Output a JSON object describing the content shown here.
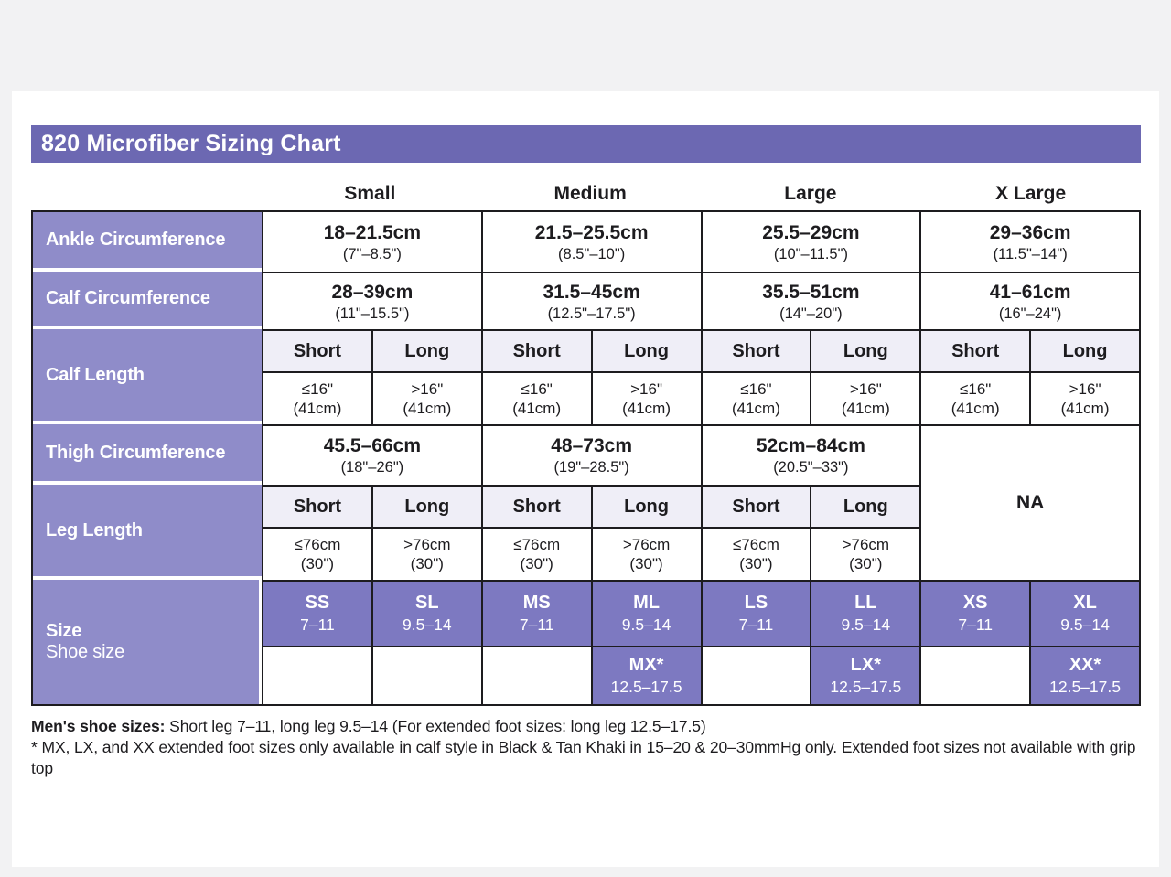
{
  "title": "820 Microfiber Sizing Chart",
  "columns": [
    "Small",
    "Medium",
    "Large",
    "X Large"
  ],
  "colors": {
    "title_bar_purple": "#6c68b2",
    "row_label_purple": "#8f8cc9",
    "size_cell_purple": "#7d79c1",
    "subheader_lavender": "#efeef7",
    "border_black": "#1d1c1f",
    "page_background": "#f2f2f3"
  },
  "table": {
    "ankle": {
      "label": "Ankle Circumference",
      "cells": [
        {
          "primary": "18–21.5cm",
          "secondary": "(7\"–8.5\")"
        },
        {
          "primary": "21.5–25.5cm",
          "secondary": "(8.5\"–10\")"
        },
        {
          "primary": "25.5–29cm",
          "secondary": "(10\"–11.5\")"
        },
        {
          "primary": "29–36cm",
          "secondary": "(11.5\"–14\")"
        }
      ]
    },
    "calf_circumference": {
      "label": "Calf Circumference",
      "cells": [
        {
          "primary": "28–39cm",
          "secondary": "(11\"–15.5\")"
        },
        {
          "primary": "31.5–45cm",
          "secondary": "(12.5\"–17.5\")"
        },
        {
          "primary": "35.5–51cm",
          "secondary": "(14\"–20\")"
        },
        {
          "primary": "41–61cm",
          "secondary": "(16\"–24\")"
        }
      ]
    },
    "calf_length": {
      "label": "Calf Length",
      "subheaders": [
        "Short",
        "Long",
        "Short",
        "Long",
        "Short",
        "Long",
        "Short",
        "Long"
      ],
      "values": [
        {
          "limit": "≤16\"",
          "note": "(41cm)"
        },
        {
          "limit": ">16\"",
          "note": "(41cm)"
        },
        {
          "limit": "≤16\"",
          "note": "(41cm)"
        },
        {
          "limit": ">16\"",
          "note": "(41cm)"
        },
        {
          "limit": "≤16\"",
          "note": "(41cm)"
        },
        {
          "limit": ">16\"",
          "note": "(41cm)"
        },
        {
          "limit": "≤16\"",
          "note": "(41cm)"
        },
        {
          "limit": ">16\"",
          "note": "(41cm)"
        }
      ]
    },
    "thigh_circumference": {
      "label": "Thigh Circumference",
      "cells": [
        {
          "primary": "45.5–66cm",
          "secondary": "(18\"–26\")"
        },
        {
          "primary": "48–73cm",
          "secondary": "(19\"–28.5\")"
        },
        {
          "primary": "52cm–84cm",
          "secondary": "(20.5\"–33\")"
        }
      ],
      "na": "NA"
    },
    "leg_length": {
      "label": "Leg Length",
      "subheaders": [
        "Short",
        "Long",
        "Short",
        "Long",
        "Short",
        "Long"
      ],
      "values": [
        {
          "limit": "≤76cm",
          "note": "(30\")"
        },
        {
          "limit": ">76cm",
          "note": "(30\")"
        },
        {
          "limit": "≤76cm",
          "note": "(30\")"
        },
        {
          "limit": ">76cm",
          "note": "(30\")"
        },
        {
          "limit": "≤76cm",
          "note": "(30\")"
        },
        {
          "limit": ">76cm",
          "note": "(30\")"
        }
      ]
    },
    "size": {
      "label_primary": "Size",
      "label_secondary": "Shoe size",
      "row1": [
        {
          "code": "SS",
          "range": "7–11"
        },
        {
          "code": "SL",
          "range": "9.5–14"
        },
        {
          "code": "MS",
          "range": "7–11"
        },
        {
          "code": "ML",
          "range": "9.5–14"
        },
        {
          "code": "LS",
          "range": "7–11"
        },
        {
          "code": "LL",
          "range": "9.5–14"
        },
        {
          "code": "XS",
          "range": "7–11"
        },
        {
          "code": "XL",
          "range": "9.5–14"
        }
      ],
      "row2": {
        "mx": {
          "code": "MX*",
          "range": "12.5–17.5"
        },
        "lx": {
          "code": "LX*",
          "range": "12.5–17.5"
        },
        "xx": {
          "code": "XX*",
          "range": "12.5–17.5"
        }
      }
    }
  },
  "footnotes": {
    "line1_bold": "Men's shoe sizes:",
    "line1_rest": " Short leg 7–11, long leg 9.5–14 (For extended foot sizes: long leg 12.5–17.5)",
    "line2": "* MX, LX, and XX extended foot sizes only available in calf style in Black & Tan Khaki in 15–20 & 20–30mmHg only. Extended foot sizes not available with grip top"
  },
  "chart_data": {
    "type": "table",
    "title": "820 Microfiber Sizing Chart",
    "columns": [
      "Small",
      "Medium",
      "Large",
      "X Large"
    ],
    "rows": [
      {
        "label": "Ankle Circumference",
        "values": [
          "18–21.5cm (7\"–8.5\")",
          "21.5–25.5cm (8.5\"–10\")",
          "25.5–29cm (10\"–11.5\")",
          "29–36cm (11.5\"–14\")"
        ]
      },
      {
        "label": "Calf Circumference",
        "values": [
          "28–39cm (11\"–15.5\")",
          "31.5–45cm (12.5\"–17.5\")",
          "35.5–51cm (14\"–20\")",
          "41–61cm (16\"–24\")"
        ]
      },
      {
        "label": "Calf Length",
        "values": [
          "Short: ≤16\" (41cm) / Long: >16\" (41cm)",
          "Short: ≤16\" (41cm) / Long: >16\" (41cm)",
          "Short: ≤16\" (41cm) / Long: >16\" (41cm)",
          "Short: ≤16\" (41cm) / Long: >16\" (41cm)"
        ]
      },
      {
        "label": "Thigh Circumference",
        "values": [
          "45.5–66cm (18\"–26\")",
          "48–73cm (19\"–28.5\")",
          "52cm–84cm (20.5\"–33\")",
          "NA"
        ]
      },
      {
        "label": "Leg Length",
        "values": [
          "Short: ≤76cm (30\") / Long: >76cm (30\")",
          "Short: ≤76cm (30\") / Long: >76cm (30\")",
          "Short: ≤76cm (30\") / Long: >76cm (30\")",
          "NA"
        ]
      },
      {
        "label": "Size / Shoe size",
        "values": [
          "SS 7–11 / SL 9.5–14",
          "MS 7–11 / ML 9.5–14 / MX* 12.5–17.5",
          "LS 7–11 / LL 9.5–14 / LX* 12.5–17.5",
          "XS 7–11 / XL 9.5–14 / XX* 12.5–17.5"
        ]
      }
    ],
    "footnotes": [
      "Men's shoe sizes: Short leg 7–11, long leg 9.5–14 (For extended foot sizes: long leg 12.5–17.5)",
      "* MX, LX, and XX extended foot sizes only available in calf style in Black & Tan Khaki in 15–20 & 20–30mmHg only. Extended foot sizes not available with grip top"
    ]
  }
}
